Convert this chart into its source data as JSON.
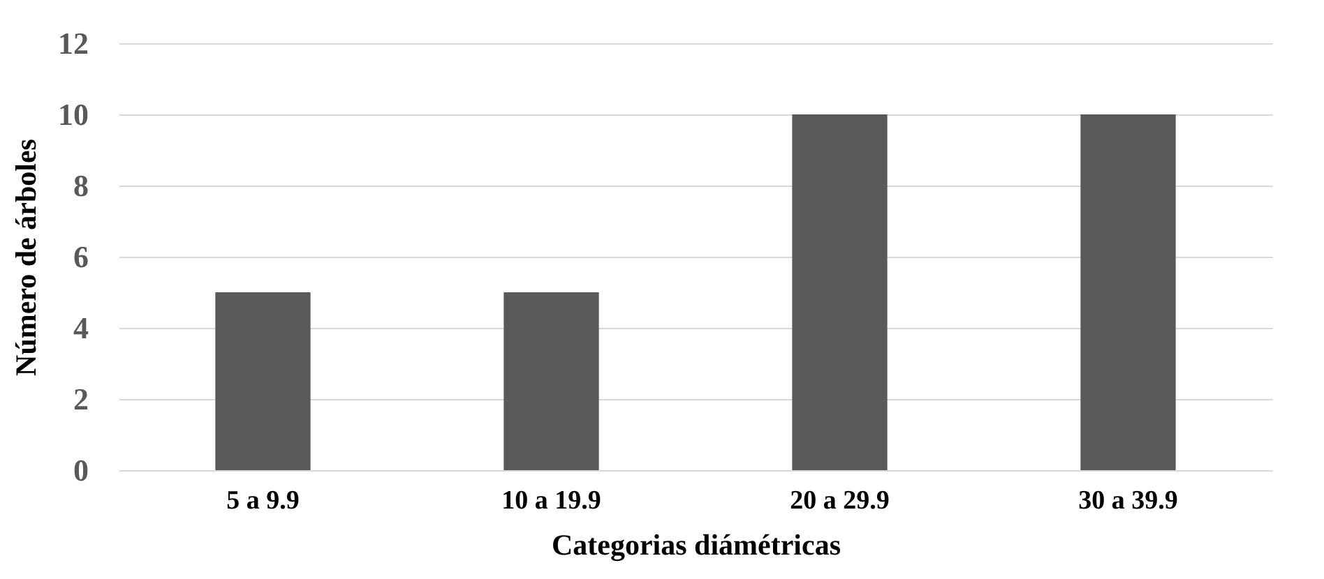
{
  "chart_data": {
    "type": "bar",
    "xlabel": "Categorias diámétricas",
    "ylabel": "Número de árboles",
    "categories": [
      "5 a 9.9",
      "10 a 19.9",
      "20 a 29.9",
      "30 a 39.9"
    ],
    "values": [
      5,
      5,
      10,
      10
    ],
    "color": "#595959",
    "ylim": [
      0,
      12
    ],
    "yticks": [
      0,
      2,
      4,
      6,
      8,
      10,
      12
    ],
    "grid": "y"
  }
}
